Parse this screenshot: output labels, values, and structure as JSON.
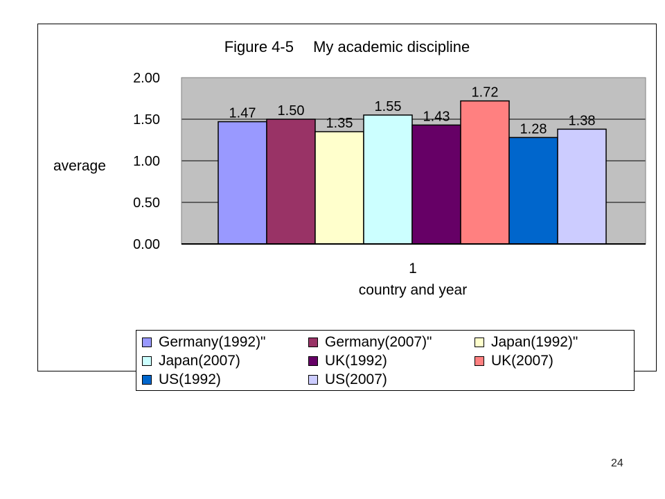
{
  "page_number": "24",
  "chart_data": {
    "type": "bar",
    "title": "Figure 4-5　 My academic discipline",
    "xlabel": "country and year",
    "ylabel": "average",
    "categories": [
      "1"
    ],
    "ylim": [
      0,
      2
    ],
    "yticks": [
      "0.00",
      "0.50",
      "1.00",
      "1.50",
      "2.00"
    ],
    "grid": true,
    "plot_background": "#c0c0c0",
    "legend_position": "bottom",
    "series": [
      {
        "name": "Germany(1992)\"",
        "values": [
          1.47
        ],
        "label": "1.47",
        "color": "#9999ff"
      },
      {
        "name": "Germany(2007)\"",
        "values": [
          1.5
        ],
        "label": "1.50",
        "color": "#993366"
      },
      {
        "name": "Japan(1992)\"",
        "values": [
          1.35
        ],
        "label": "1.35",
        "color": "#ffffcc"
      },
      {
        "name": "Japan(2007)",
        "values": [
          1.55
        ],
        "label": "1.55",
        "color": "#ccffff"
      },
      {
        "name": "UK(1992)",
        "values": [
          1.43
        ],
        "label": "1.43",
        "color": "#660066"
      },
      {
        "name": "UK(2007)",
        "values": [
          1.72
        ],
        "label": "1.72",
        "color": "#ff8080"
      },
      {
        "name": "US(1992)",
        "values": [
          1.28
        ],
        "label": "1.28",
        "color": "#0066cc"
      },
      {
        "name": "US(2007)",
        "values": [
          1.38
        ],
        "label": "1.38",
        "color": "#ccccff"
      }
    ]
  }
}
